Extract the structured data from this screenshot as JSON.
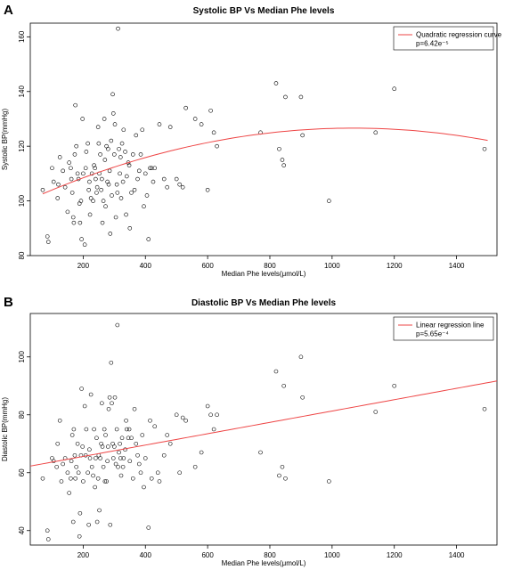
{
  "chart_data": [
    {
      "panel": "A",
      "type": "scatter",
      "title": "Systolic BP Vs Median Phe levels",
      "xlabel": "Median Phe levels(μmol/L)",
      "ylabel": "Systolic BP(mmHg)",
      "xlim": [
        30,
        1530
      ],
      "ylim": [
        80,
        165
      ],
      "x_ticks": [
        200,
        400,
        600,
        800,
        1000,
        1200,
        1400
      ],
      "y_ticks": [
        80,
        100,
        120,
        140,
        160
      ],
      "legend": {
        "label": "Quadratic regression curve",
        "stat": "p=6.42e⁻⁵",
        "placement": "top-right"
      },
      "fit": {
        "kind": "quadratic",
        "color": "#ee4444",
        "x_range": [
          70,
          1500
        ],
        "coef": [
          99.1,
          0.0515,
          -2.41e-05
        ]
      },
      "points": [
        [
          70,
          104
        ],
        [
          85,
          87
        ],
        [
          88,
          85
        ],
        [
          100,
          112
        ],
        [
          105,
          107
        ],
        [
          118,
          101
        ],
        [
          120,
          106
        ],
        [
          125,
          116
        ],
        [
          135,
          111
        ],
        [
          142,
          105
        ],
        [
          150,
          96
        ],
        [
          155,
          114
        ],
        [
          160,
          112
        ],
        [
          162,
          108
        ],
        [
          165,
          103
        ],
        [
          168,
          94
        ],
        [
          170,
          92
        ],
        [
          173,
          117
        ],
        [
          175,
          135
        ],
        [
          178,
          120
        ],
        [
          182,
          110
        ],
        [
          185,
          108
        ],
        [
          188,
          99
        ],
        [
          190,
          92
        ],
        [
          193,
          100
        ],
        [
          195,
          86
        ],
        [
          198,
          130
        ],
        [
          200,
          110
        ],
        [
          205,
          84
        ],
        [
          208,
          112
        ],
        [
          210,
          118
        ],
        [
          215,
          121
        ],
        [
          218,
          104
        ],
        [
          220,
          107
        ],
        [
          222,
          95
        ],
        [
          225,
          101
        ],
        [
          228,
          110
        ],
        [
          232,
          100
        ],
        [
          235,
          113
        ],
        [
          238,
          112
        ],
        [
          240,
          108
        ],
        [
          243,
          103
        ],
        [
          245,
          105
        ],
        [
          248,
          127
        ],
        [
          250,
          121
        ],
        [
          252,
          110
        ],
        [
          255,
          117
        ],
        [
          258,
          104
        ],
        [
          260,
          108
        ],
        [
          262,
          92
        ],
        [
          265,
          100
        ],
        [
          268,
          130
        ],
        [
          270,
          115
        ],
        [
          272,
          98
        ],
        [
          275,
          120
        ],
        [
          278,
          107
        ],
        [
          280,
          119
        ],
        [
          282,
          106
        ],
        [
          285,
          111
        ],
        [
          287,
          88
        ],
        [
          290,
          122
        ],
        [
          292,
          102
        ],
        [
          295,
          139
        ],
        [
          297,
          132
        ],
        [
          300,
          117
        ],
        [
          302,
          128
        ],
        [
          305,
          94
        ],
        [
          308,
          106
        ],
        [
          310,
          103
        ],
        [
          312,
          163
        ],
        [
          315,
          119
        ],
        [
          318,
          110
        ],
        [
          320,
          116
        ],
        [
          322,
          101
        ],
        [
          325,
          121
        ],
        [
          328,
          107
        ],
        [
          330,
          126
        ],
        [
          335,
          118
        ],
        [
          338,
          95
        ],
        [
          340,
          109
        ],
        [
          345,
          114
        ],
        [
          348,
          113
        ],
        [
          350,
          90
        ],
        [
          355,
          103
        ],
        [
          360,
          117
        ],
        [
          365,
          104
        ],
        [
          370,
          124
        ],
        [
          375,
          108
        ],
        [
          380,
          111
        ],
        [
          385,
          117
        ],
        [
          390,
          126
        ],
        [
          395,
          98
        ],
        [
          400,
          110
        ],
        [
          405,
          102
        ],
        [
          410,
          86
        ],
        [
          415,
          112
        ],
        [
          420,
          112
        ],
        [
          425,
          107
        ],
        [
          430,
          112
        ],
        [
          445,
          128
        ],
        [
          460,
          108
        ],
        [
          470,
          105
        ],
        [
          480,
          127
        ],
        [
          500,
          108
        ],
        [
          510,
          106
        ],
        [
          520,
          105
        ],
        [
          530,
          134
        ],
        [
          560,
          130
        ],
        [
          580,
          128
        ],
        [
          600,
          104
        ],
        [
          610,
          133
        ],
        [
          620,
          125
        ],
        [
          630,
          120
        ],
        [
          770,
          125
        ],
        [
          820,
          143
        ],
        [
          830,
          119
        ],
        [
          840,
          115
        ],
        [
          845,
          113
        ],
        [
          850,
          138
        ],
        [
          900,
          138
        ],
        [
          905,
          124
        ],
        [
          990,
          100
        ],
        [
          1140,
          125
        ],
        [
          1200,
          141
        ],
        [
          1490,
          119
        ]
      ]
    },
    {
      "panel": "B",
      "type": "scatter",
      "title": "Diastolic BP Vs Median Phe levels",
      "xlabel": "Median Phe levels(μmol/L)",
      "ylabel": "Diastolic BP(mmHg)",
      "xlim": [
        30,
        1530
      ],
      "ylim": [
        35,
        115
      ],
      "x_ticks": [
        200,
        400,
        600,
        800,
        1000,
        1200,
        1400
      ],
      "y_ticks": [
        40,
        60,
        80,
        100
      ],
      "legend": {
        "label": "Linear regression line",
        "stat": "p=5.65e⁻⁴",
        "placement": "top-right"
      },
      "fit": {
        "kind": "linear",
        "color": "#ee4444",
        "x_range": [
          30,
          1530
        ],
        "coef": [
          61.7,
          0.0196
        ]
      },
      "points": [
        [
          70,
          58
        ],
        [
          85,
          40
        ],
        [
          88,
          37
        ],
        [
          100,
          65
        ],
        [
          105,
          64
        ],
        [
          115,
          62
        ],
        [
          118,
          70
        ],
        [
          125,
          78
        ],
        [
          130,
          57
        ],
        [
          135,
          63
        ],
        [
          142,
          65
        ],
        [
          150,
          60
        ],
        [
          155,
          53
        ],
        [
          160,
          58
        ],
        [
          162,
          64
        ],
        [
          165,
          73
        ],
        [
          168,
          43
        ],
        [
          170,
          75
        ],
        [
          173,
          66
        ],
        [
          175,
          58
        ],
        [
          178,
          62
        ],
        [
          182,
          70
        ],
        [
          185,
          60
        ],
        [
          188,
          38
        ],
        [
          190,
          46
        ],
        [
          193,
          66
        ],
        [
          195,
          89
        ],
        [
          198,
          69
        ],
        [
          200,
          57
        ],
        [
          205,
          83
        ],
        [
          208,
          66
        ],
        [
          210,
          75
        ],
        [
          215,
          60
        ],
        [
          218,
          42
        ],
        [
          220,
          68
        ],
        [
          222,
          65
        ],
        [
          225,
          87
        ],
        [
          228,
          62
        ],
        [
          232,
          59
        ],
        [
          235,
          75
        ],
        [
          238,
          55
        ],
        [
          240,
          65
        ],
        [
          243,
          72
        ],
        [
          245,
          43
        ],
        [
          248,
          58
        ],
        [
          250,
          66
        ],
        [
          252,
          47
        ],
        [
          255,
          65
        ],
        [
          258,
          70
        ],
        [
          260,
          84
        ],
        [
          262,
          69
        ],
        [
          265,
          62
        ],
        [
          268,
          75
        ],
        [
          270,
          57
        ],
        [
          272,
          73
        ],
        [
          275,
          57
        ],
        [
          278,
          64
        ],
        [
          280,
          69
        ],
        [
          282,
          82
        ],
        [
          285,
          86
        ],
        [
          287,
          42
        ],
        [
          290,
          98
        ],
        [
          292,
          84
        ],
        [
          295,
          70
        ],
        [
          297,
          65
        ],
        [
          300,
          69
        ],
        [
          302,
          86
        ],
        [
          305,
          63
        ],
        [
          308,
          75
        ],
        [
          310,
          111
        ],
        [
          312,
          62
        ],
        [
          315,
          67
        ],
        [
          318,
          70
        ],
        [
          320,
          65
        ],
        [
          322,
          59
        ],
        [
          325,
          72
        ],
        [
          328,
          62
        ],
        [
          330,
          65
        ],
        [
          335,
          68
        ],
        [
          338,
          78
        ],
        [
          340,
          75
        ],
        [
          345,
          72
        ],
        [
          348,
          75
        ],
        [
          350,
          64
        ],
        [
          355,
          72
        ],
        [
          360,
          58
        ],
        [
          365,
          82
        ],
        [
          370,
          70
        ],
        [
          375,
          66
        ],
        [
          380,
          63
        ],
        [
          385,
          60
        ],
        [
          390,
          73
        ],
        [
          395,
          55
        ],
        [
          400,
          65
        ],
        [
          410,
          41
        ],
        [
          415,
          78
        ],
        [
          420,
          58
        ],
        [
          430,
          76
        ],
        [
          440,
          60
        ],
        [
          445,
          57
        ],
        [
          460,
          66
        ],
        [
          470,
          73
        ],
        [
          480,
          70
        ],
        [
          500,
          80
        ],
        [
          510,
          60
        ],
        [
          520,
          79
        ],
        [
          530,
          78
        ],
        [
          560,
          62
        ],
        [
          580,
          67
        ],
        [
          600,
          83
        ],
        [
          610,
          80
        ],
        [
          620,
          75
        ],
        [
          630,
          80
        ],
        [
          770,
          67
        ],
        [
          820,
          95
        ],
        [
          830,
          59
        ],
        [
          840,
          62
        ],
        [
          845,
          90
        ],
        [
          850,
          58
        ],
        [
          900,
          100
        ],
        [
          905,
          86
        ],
        [
          990,
          57
        ],
        [
          1140,
          81
        ],
        [
          1200,
          90
        ],
        [
          1490,
          82
        ]
      ]
    }
  ]
}
